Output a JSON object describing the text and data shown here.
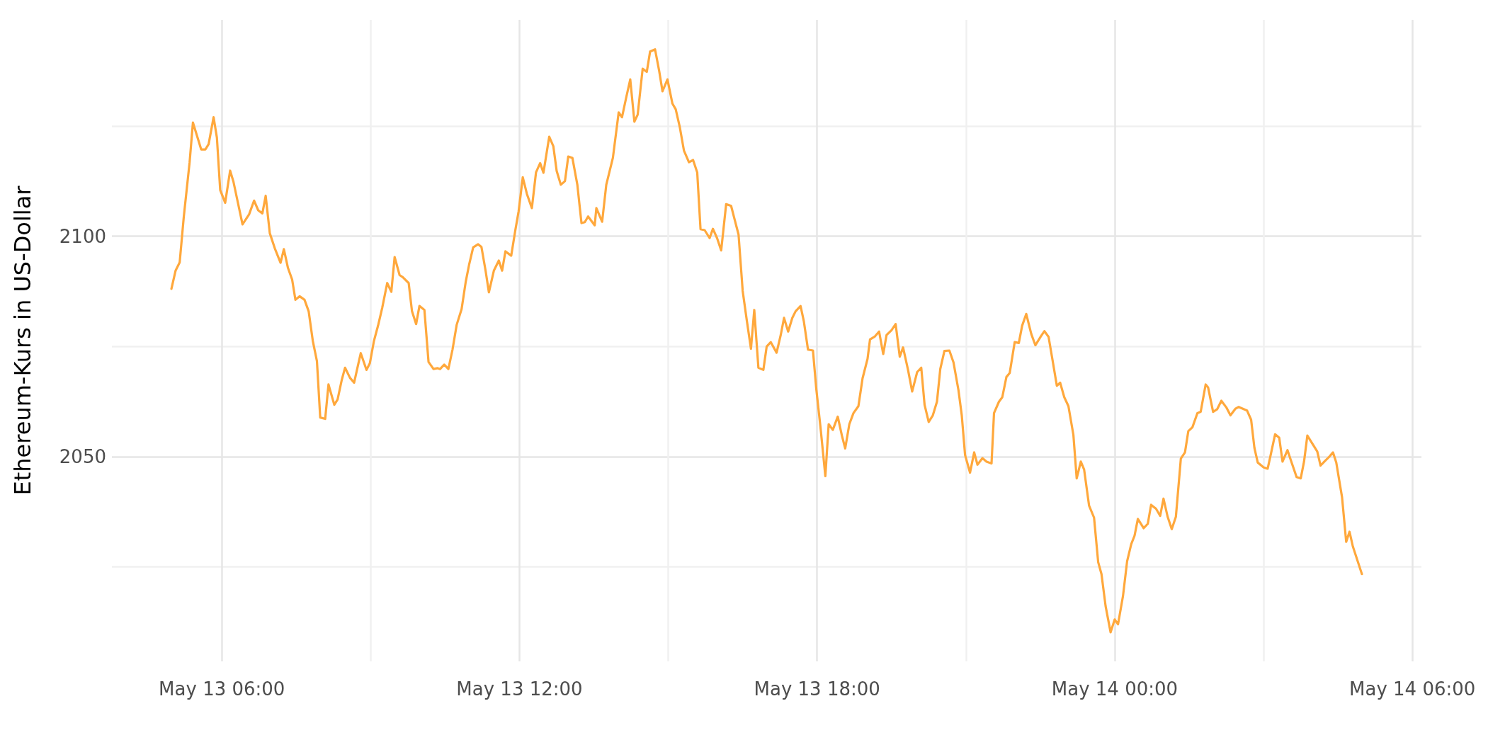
{
  "chart_data": {
    "type": "line",
    "ylabel": "Ethereum-Kurs in US-Dollar",
    "xlim": [
      "--05-13T03:47",
      "--05-14T06:11"
    ],
    "xticks": [
      {
        "value": "--05-13T06:00",
        "label": "May 13 06:00"
      },
      {
        "value": "--05-13T09:00",
        "label": null
      },
      {
        "value": "--05-13T12:00",
        "label": "May 13 12:00"
      },
      {
        "value": "--05-13T15:00",
        "label": null
      },
      {
        "value": "--05-13T18:00",
        "label": "May 13 18:00"
      },
      {
        "value": "--05-13T21:00",
        "label": null
      },
      {
        "value": "--05-14T00:00",
        "label": "May 14 00:00"
      },
      {
        "value": "--05-14T03:00",
        "label": null
      },
      {
        "value": "--05-14T06:00",
        "label": "May 14 06:00"
      }
    ],
    "ylim": [
      2003.6,
      2149.1
    ],
    "yticks": [
      {
        "value": 2025,
        "label": null
      },
      2050,
      {
        "value": 2075,
        "label": null
      },
      2100,
      {
        "value": 2125,
        "label": null
      }
    ],
    "grid": true,
    "marker": "none",
    "line_style": "solid",
    "series": [
      {
        "color": "#ffa83c",
        "x": [
          "--05-13T04:59",
          "--05-13T05:04",
          "--05-13T05:09",
          "--05-13T05:14",
          "--05-13T05:21",
          "--05-13T05:25",
          "--05-13T05:35",
          "--05-13T05:40",
          "--05-13T05:44",
          "--05-13T05:50",
          "--05-13T05:54",
          "--05-13T05:58",
          "--05-13T06:04",
          "--05-13T06:10",
          "--05-13T06:14",
          "--05-13T06:20",
          "--05-13T06:25",
          "--05-13T06:33",
          "--05-13T06:39",
          "--05-13T06:44",
          "--05-13T06:49",
          "--05-13T06:53",
          "--05-13T06:58",
          "--05-13T07:04",
          "--05-13T07:11",
          "--05-13T07:15",
          "--05-13T07:20",
          "--05-13T07:25",
          "--05-13T07:29",
          "--05-13T07:34",
          "--05-13T07:40",
          "--05-13T07:45",
          "--05-13T07:50",
          "--05-13T07:55",
          "--05-13T07:59",
          "--05-13T08:05",
          "--05-13T08:09",
          "--05-13T08:16",
          "--05-13T08:20",
          "--05-13T08:25",
          "--05-13T08:29",
          "--05-13T08:35",
          "--05-13T08:40",
          "--05-13T08:44",
          "--05-13T08:48",
          "--05-13T08:55",
          "--05-13T08:59",
          "--05-13T09:04",
          "--05-13T09:09",
          "--05-13T09:14",
          "--05-13T09:20",
          "--05-13T09:25",
          "--05-13T09:29",
          "--05-13T09:35",
          "--05-13T09:39",
          "--05-13T09:46",
          "--05-13T09:50",
          "--05-13T09:55",
          "--05-13T09:59",
          "--05-13T10:05",
          "--05-13T10:10",
          "--05-13T10:16",
          "--05-13T10:21",
          "--05-13T10:24",
          "--05-13T10:29",
          "--05-13T10:34",
          "--05-13T10:39",
          "--05-13T10:44",
          "--05-13T10:50",
          "--05-13T10:55",
          "--05-13T10:59",
          "--05-13T11:04",
          "--05-13T11:10",
          "--05-13T11:14",
          "--05-13T11:19",
          "--05-13T11:23",
          "--05-13T11:29",
          "--05-13T11:35",
          "--05-13T11:39",
          "--05-13T11:43",
          "--05-13T11:50",
          "--05-13T11:55",
          "--05-13T11:59",
          "--05-13T12:04",
          "--05-13T12:09",
          "--05-13T12:15",
          "--05-13T12:20",
          "--05-13T12:25",
          "--05-13T12:29",
          "--05-13T12:36",
          "--05-13T12:41",
          "--05-13T12:45",
          "--05-13T12:50",
          "--05-13T12:55",
          "--05-13T12:59",
          "--05-13T13:04",
          "--05-13T13:10",
          "--05-13T13:15",
          "--05-13T13:19",
          "--05-13T13:23",
          "--05-13T13:31",
          "--05-13T13:33",
          "--05-13T13:40",
          "--05-13T13:45",
          "--05-13T13:53",
          "--05-13T14:00",
          "--05-13T14:04",
          "--05-13T14:09",
          "--05-13T14:14",
          "--05-13T14:19",
          "--05-13T14:23",
          "--05-13T14:29",
          "--05-13T14:34",
          "--05-13T14:38",
          "--05-13T14:44",
          "--05-13T14:49",
          "--05-13T14:53",
          "--05-13T14:59",
          "--05-13T15:05",
          "--05-13T15:09",
          "--05-13T15:14",
          "--05-13T15:19",
          "--05-13T15:25",
          "--05-13T15:30",
          "--05-13T15:35",
          "--05-13T15:39",
          "--05-13T15:44",
          "--05-13T15:50",
          "--05-13T15:54",
          "--05-13T15:59",
          "--05-13T16:04",
          "--05-13T16:10",
          "--05-13T16:16",
          "--05-13T16:20",
          "--05-13T16:25",
          "--05-13T16:30",
          "--05-13T16:35",
          "--05-13T16:40",
          "--05-13T16:44",
          "--05-13T16:49",
          "--05-13T16:55",
          "--05-13T16:59",
          "--05-13T17:04",
          "--05-13T17:11",
          "--05-13T17:16",
          "--05-13T17:20",
          "--05-13T17:25",
          "--05-13T17:30",
          "--05-13T17:34",
          "--05-13T17:40",
          "--05-13T17:44",
          "--05-13T17:49",
          "--05-13T17:55",
          "--05-13T17:59",
          "--05-13T18:04",
          "--05-13T18:10",
          "--05-13T18:14",
          "--05-13T18:19",
          "--05-13T18:25",
          "--05-13T18:30",
          "--05-13T18:34",
          "--05-13T18:39",
          "--05-13T18:44",
          "--05-13T18:50",
          "--05-13T18:55",
          "--05-13T19:01",
          "--05-13T19:04",
          "--05-13T19:10",
          "--05-13T19:15",
          "--05-13T19:20",
          "--05-13T19:24",
          "--05-13T19:30",
          "--05-13T19:35",
          "--05-13T19:40",
          "--05-13T19:44",
          "--05-13T19:50",
          "--05-13T19:55",
          "--05-13T20:01",
          "--05-13T20:06",
          "--05-13T20:10",
          "--05-13T20:15",
          "--05-13T20:20",
          "--05-13T20:25",
          "--05-13T20:29",
          "--05-13T20:34",
          "--05-13T20:40",
          "--05-13T20:45",
          "--05-13T20:51",
          "--05-13T20:55",
          "--05-13T20:59",
          "--05-13T21:05",
          "--05-13T21:10",
          "--05-13T21:14",
          "--05-13T21:20",
          "--05-13T21:25",
          "--05-13T21:31",
          "--05-13T21:34",
          "--05-13T21:40",
          "--05-13T21:44",
          "--05-13T21:49",
          "--05-13T21:53",
          "--05-13T21:59",
          "--05-13T22:04",
          "--05-13T22:08",
          "--05-13T22:13",
          "--05-13T22:19",
          "--05-13T22:24",
          "--05-13T22:31",
          "--05-13T22:35",
          "--05-13T22:40",
          "--05-13T22:45",
          "--05-13T22:50",
          "--05-13T22:54",
          "--05-13T22:59",
          "--05-13T23:04",
          "--05-13T23:10",
          "--05-13T23:14",
          "--05-13T23:19",
          "--05-13T23:23",
          "--05-13T23:29",
          "--05-13T23:35",
          "--05-13T23:40",
          "--05-13T23:44",
          "--05-13T23:49",
          "--05-13T23:55",
          "--05-14T00:00",
          "--05-14T00:04",
          "--05-14T00:10",
          "--05-14T00:15",
          "--05-14T00:20",
          "--05-14T00:24",
          "--05-14T00:28",
          "--05-14T00:35",
          "--05-14T00:40",
          "--05-14T00:44",
          "--05-14T00:50",
          "--05-14T00:55",
          "--05-14T00:59",
          "--05-14T01:04",
          "--05-14T01:09",
          "--05-14T01:14",
          "--05-14T01:20",
          "--05-14T01:25",
          "--05-14T01:29",
          "--05-14T01:34",
          "--05-14T01:40",
          "--05-14T01:44",
          "--05-14T01:50",
          "--05-14T01:53",
          "--05-14T01:59",
          "--05-14T02:04",
          "--05-14T02:09",
          "--05-14T02:15",
          "--05-14T02:20",
          "--05-14T02:26",
          "--05-14T02:30",
          "--05-14T02:35",
          "--05-14T02:40",
          "--05-14T02:45",
          "--05-14T02:49",
          "--05-14T02:53",
          "--05-14T03:00",
          "--05-14T03:05",
          "--05-14T03:09",
          "--05-14T03:14",
          "--05-14T03:19",
          "--05-14T03:23",
          "--05-14T03:29",
          "--05-14T03:34",
          "--05-14T03:40",
          "--05-14T03:45",
          "--05-14T03:49",
          "--05-14T03:53",
          "--05-14T03:59",
          "--05-14T04:05",
          "--05-14T04:09",
          "--05-14T04:14",
          "--05-14T04:19",
          "--05-14T04:24",
          "--05-14T04:28",
          "--05-14T04:35",
          "--05-14T04:40",
          "--05-14T04:44",
          "--05-14T04:48",
          "--05-14T04:59"
        ],
        "values": [
          2088.1,
          2092.2,
          2094.1,
          2104.5,
          2116.8,
          2125.8,
          2119.7,
          2119.7,
          2120.9,
          2127.0,
          2122.4,
          2110.5,
          2107.6,
          2114.9,
          2112.4,
          2107.1,
          2102.7,
          2105.0,
          2108.1,
          2105.9,
          2105.2,
          2109.2,
          2100.7,
          2097.3,
          2094.0,
          2097.1,
          2092.8,
          2090.2,
          2085.6,
          2086.4,
          2085.6,
          2083.0,
          2076.3,
          2071.7,
          2058.9,
          2058.6,
          2066.4,
          2061.8,
          2063.0,
          2067.4,
          2070.2,
          2067.9,
          2066.8,
          2070.2,
          2073.5,
          2069.7,
          2071.2,
          2076.3,
          2079.8,
          2083.8,
          2089.4,
          2087.4,
          2095.3,
          2091.2,
          2090.7,
          2089.4,
          2083.0,
          2080.1,
          2084.2,
          2083.3,
          2071.5,
          2069.9,
          2070.1,
          2069.9,
          2070.9,
          2069.9,
          2074.3,
          2079.9,
          2083.5,
          2089.7,
          2093.5,
          2097.5,
          2098.2,
          2097.6,
          2092.2,
          2087.3,
          2092.2,
          2094.5,
          2092.2,
          2096.6,
          2095.6,
          2101.4,
          2105.7,
          2113.4,
          2109.6,
          2106.4,
          2114.5,
          2116.6,
          2114.4,
          2122.6,
          2120.4,
          2114.8,
          2111.7,
          2112.5,
          2118.1,
          2117.8,
          2111.7,
          2103.0,
          2103.2,
          2104.5,
          2102.5,
          2106.4,
          2103.3,
          2111.7,
          2117.8,
          2128.1,
          2127.0,
          2131.4,
          2135.6,
          2126.0,
          2127.6,
          2138.0,
          2137.3,
          2141.9,
          2142.4,
          2137.5,
          2132.9,
          2135.6,
          2130.1,
          2128.8,
          2124.7,
          2119.4,
          2116.8,
          2117.3,
          2114.5,
          2101.6,
          2101.4,
          2099.6,
          2101.7,
          2099.6,
          2096.8,
          2107.3,
          2106.9,
          2104.0,
          2100.4,
          2087.6,
          2080.9,
          2074.5,
          2083.3,
          2070.2,
          2069.7,
          2075.0,
          2076.0,
          2073.6,
          2077.6,
          2081.5,
          2078.4,
          2081.5,
          2083.0,
          2084.2,
          2080.7,
          2074.3,
          2074.1,
          2065.4,
          2056.9,
          2045.6,
          2057.4,
          2056.1,
          2059.1,
          2054.8,
          2051.9,
          2057.4,
          2059.9,
          2061.5,
          2067.8,
          2072.2,
          2076.6,
          2077.3,
          2078.4,
          2073.3,
          2077.6,
          2078.7,
          2080.1,
          2072.7,
          2074.8,
          2069.7,
          2064.8,
          2069.2,
          2070.2,
          2061.8,
          2057.9,
          2059.4,
          2062.5,
          2069.9,
          2074.0,
          2074.1,
          2071.4,
          2065.1,
          2059.4,
          2050.4,
          2046.4,
          2051.0,
          2048.2,
          2049.7,
          2048.9,
          2048.5,
          2059.9,
          2062.5,
          2063.5,
          2068.1,
          2069.0,
          2076.0,
          2075.8,
          2079.7,
          2082.4,
          2077.9,
          2075.3,
          2077.4,
          2078.5,
          2077.2,
          2071.7,
          2066.1,
          2066.8,
          2063.5,
          2061.5,
          2055.0,
          2045.1,
          2048.9,
          2047.1,
          2038.9,
          2036.2,
          2026.1,
          2023.4,
          2016.1,
          2010.2,
          2013.1,
          2012.0,
          2018.4,
          2026.3,
          2030.2,
          2032.1,
          2035.9,
          2033.8,
          2034.8,
          2039.1,
          2038.2,
          2036.6,
          2040.5,
          2036.4,
          2033.6,
          2036.4,
          2049.6,
          2051.0,
          2055.8,
          2056.7,
          2059.9,
          2060.2,
          2066.4,
          2065.7,
          2060.2,
          2060.8,
          2062.7,
          2061.2,
          2059.4,
          2060.9,
          2061.3,
          2060.9,
          2060.5,
          2058.4,
          2052.0,
          2048.7,
          2047.6,
          2047.3,
          2050.7,
          2055.1,
          2054.3,
          2048.9,
          2051.5,
          2048.7,
          2045.4,
          2045.1,
          2048.9,
          2054.8,
          2053.0,
          2051.2,
          2048.0,
          2049.0,
          2049.9,
          2051.0,
          2048.7,
          2040.8,
          2030.7,
          2033.0,
          2029.7,
          2023.4
        ]
      }
    ]
  }
}
